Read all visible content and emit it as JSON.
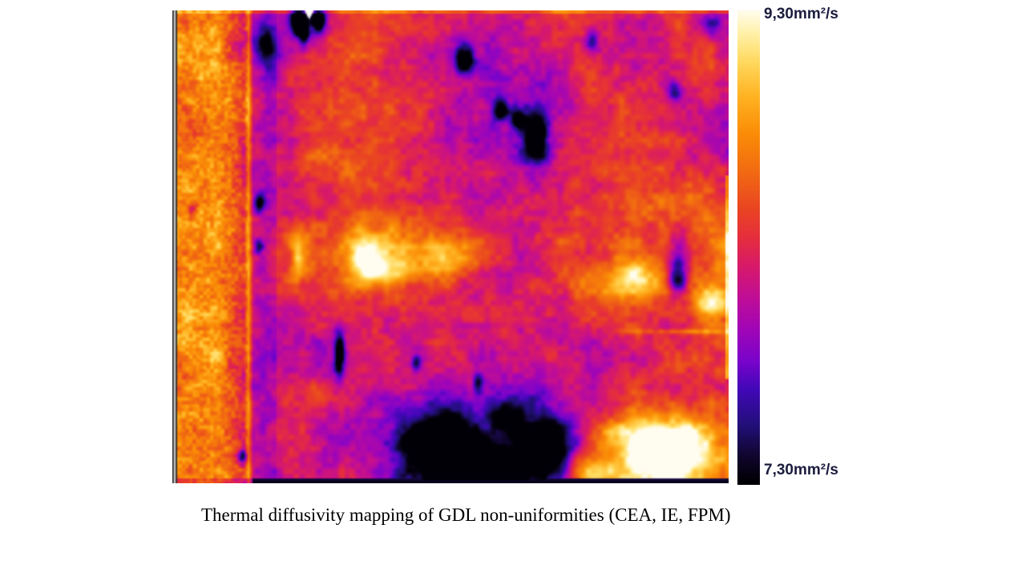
{
  "figure": {
    "caption": "Thermal diffusivity mapping of GDL non-uniformities (CEA, IE, FPM)"
  },
  "colorbar": {
    "max_label": "9,30mm²/s",
    "min_label": "7,30mm²/s",
    "max_value": 9.3,
    "min_value": 7.3,
    "unit": "mm²/s",
    "label_color": "#1b1c3d"
  },
  "chart_data": {
    "type": "heatmap",
    "title": "Thermal diffusivity mapping of GDL non-uniformities (CEA, IE, FPM)",
    "unit": "mm²/s",
    "value_range": [
      7.3,
      9.3
    ],
    "legend_position": "right-colorbar",
    "colorbar_labels": {
      "top": "9,30mm²/s",
      "bottom": "7,30mm²/s"
    },
    "colormap_stops": [
      [
        0.0,
        "#000000"
      ],
      [
        0.06,
        "#10062e"
      ],
      [
        0.125,
        "#23107a"
      ],
      [
        0.2,
        "#4208b8"
      ],
      [
        0.26,
        "#7a04cc"
      ],
      [
        0.33,
        "#a306b6"
      ],
      [
        0.4,
        "#c30f93"
      ],
      [
        0.46,
        "#d81a6a"
      ],
      [
        0.52,
        "#e62e3e"
      ],
      [
        0.58,
        "#ea4523"
      ],
      [
        0.66,
        "#f26b12"
      ],
      [
        0.74,
        "#fb8d07"
      ],
      [
        0.82,
        "#ffb424"
      ],
      [
        0.89,
        "#ffd95e"
      ],
      [
        0.95,
        "#fff1a8"
      ],
      [
        1.0,
        "#fffdf0"
      ]
    ],
    "grid": {
      "cols": 13,
      "rows": 11,
      "values_mm2_per_s": [
        [
          8.75,
          8.8,
          7.95,
          8.1,
          8.5,
          8.4,
          8.2,
          8.15,
          8.3,
          8.5,
          8.2,
          8.45,
          8.1
        ],
        [
          8.8,
          8.75,
          8.0,
          8.45,
          8.55,
          8.35,
          8.1,
          7.9,
          8.2,
          8.45,
          8.05,
          8.35,
          8.25
        ],
        [
          8.75,
          8.85,
          8.15,
          8.5,
          8.6,
          8.5,
          8.25,
          8.0,
          7.85,
          8.3,
          8.45,
          8.2,
          8.0
        ],
        [
          8.8,
          8.7,
          8.2,
          8.55,
          8.5,
          8.3,
          8.05,
          8.1,
          8.0,
          8.2,
          8.5,
          8.3,
          7.9
        ],
        [
          8.75,
          8.75,
          8.05,
          8.4,
          8.45,
          8.2,
          8.1,
          8.15,
          8.25,
          8.45,
          8.55,
          8.45,
          8.35
        ],
        [
          8.8,
          8.8,
          8.25,
          8.6,
          8.8,
          8.9,
          8.5,
          8.3,
          8.35,
          8.5,
          8.7,
          8.2,
          8.8
        ],
        [
          8.75,
          8.7,
          8.2,
          8.45,
          8.5,
          8.4,
          8.25,
          8.2,
          8.3,
          8.5,
          8.6,
          8.55,
          8.6
        ],
        [
          8.8,
          8.75,
          8.15,
          8.1,
          8.3,
          8.2,
          8.1,
          8.2,
          8.15,
          8.1,
          8.4,
          8.25,
          8.3
        ],
        [
          8.75,
          8.7,
          8.2,
          8.25,
          8.15,
          8.2,
          8.15,
          8.05,
          7.95,
          8.1,
          8.3,
          8.3,
          8.35
        ],
        [
          8.8,
          8.75,
          8.15,
          8.25,
          8.1,
          7.8,
          7.6,
          7.55,
          7.8,
          8.3,
          8.7,
          8.85,
          8.6
        ],
        [
          8.75,
          8.7,
          8.1,
          8.2,
          8.1,
          7.7,
          7.45,
          7.5,
          7.75,
          8.5,
          9.0,
          9.1,
          8.7
        ]
      ]
    },
    "features": [
      {
        "x": 0.225,
        "y": 0.022,
        "rx": 0.013,
        "ry": 0.03,
        "dv": -1.4
      },
      {
        "x": 0.262,
        "y": 0.018,
        "rx": 0.013,
        "ry": 0.025,
        "dv": -1.4
      },
      {
        "x": 0.237,
        "y": 0.045,
        "rx": 0.009,
        "ry": 0.028,
        "dv": -1.0
      },
      {
        "x": 0.17,
        "y": 0.075,
        "rx": 0.02,
        "ry": 0.035,
        "dv": -0.55
      },
      {
        "x": 0.525,
        "y": 0.1,
        "rx": 0.018,
        "ry": 0.028,
        "dv": -1.1
      },
      {
        "x": 0.59,
        "y": 0.21,
        "rx": 0.013,
        "ry": 0.022,
        "dv": -0.85
      },
      {
        "x": 0.62,
        "y": 0.23,
        "rx": 0.011,
        "ry": 0.018,
        "dv": -0.7
      },
      {
        "x": 0.655,
        "y": 0.27,
        "rx": 0.02,
        "ry": 0.05,
        "dv": -1.25
      },
      {
        "x": 0.755,
        "y": 0.065,
        "rx": 0.012,
        "ry": 0.025,
        "dv": -0.75
      },
      {
        "x": 0.905,
        "y": 0.17,
        "rx": 0.012,
        "ry": 0.02,
        "dv": -0.7
      },
      {
        "x": 0.975,
        "y": 0.03,
        "rx": 0.02,
        "ry": 0.022,
        "dv": -0.55
      },
      {
        "x": 0.91,
        "y": 0.56,
        "rx": 0.016,
        "ry": 0.035,
        "dv": -1.1
      },
      {
        "x": 0.3,
        "y": 0.73,
        "rx": 0.009,
        "ry": 0.045,
        "dv": -1.15
      },
      {
        "x": 0.44,
        "y": 0.745,
        "rx": 0.009,
        "ry": 0.018,
        "dv": -0.7
      },
      {
        "x": 0.55,
        "y": 0.79,
        "rx": 0.009,
        "ry": 0.022,
        "dv": -0.75
      },
      {
        "x": 0.48,
        "y": 0.92,
        "rx": 0.05,
        "ry": 0.055,
        "dv": -1.35
      },
      {
        "x": 0.56,
        "y": 0.97,
        "rx": 0.06,
        "ry": 0.04,
        "dv": -1.2
      },
      {
        "x": 0.67,
        "y": 0.93,
        "rx": 0.045,
        "ry": 0.06,
        "dv": -1.35
      },
      {
        "x": 0.6,
        "y": 0.865,
        "rx": 0.025,
        "ry": 0.03,
        "dv": -0.8
      },
      {
        "x": 0.125,
        "y": 0.945,
        "rx": 0.008,
        "ry": 0.015,
        "dv": -0.85
      },
      {
        "x": 0.035,
        "y": 0.42,
        "rx": 0.008,
        "ry": 0.012,
        "dv": -0.45
      },
      {
        "x": 0.155,
        "y": 0.41,
        "rx": 0.008,
        "ry": 0.02,
        "dv": -0.75
      },
      {
        "x": 0.155,
        "y": 0.5,
        "rx": 0.008,
        "ry": 0.015,
        "dv": -0.65
      },
      {
        "x": 0.38,
        "y": 0.545,
        "rx": 0.05,
        "ry": 0.04,
        "dv": 0.55
      },
      {
        "x": 0.5,
        "y": 0.525,
        "rx": 0.05,
        "ry": 0.035,
        "dv": 0.6
      },
      {
        "x": 0.345,
        "y": 0.53,
        "rx": 0.025,
        "ry": 0.06,
        "dv": 0.45
      },
      {
        "x": 0.225,
        "y": 0.52,
        "rx": 0.012,
        "ry": 0.05,
        "dv": 0.5
      },
      {
        "x": 0.83,
        "y": 0.57,
        "rx": 0.05,
        "ry": 0.035,
        "dv": 0.5
      },
      {
        "x": 0.97,
        "y": 0.62,
        "rx": 0.03,
        "ry": 0.03,
        "dv": 0.8
      },
      {
        "x": 0.89,
        "y": 0.93,
        "rx": 0.07,
        "ry": 0.05,
        "dv": 1.05
      },
      {
        "x": 0.8,
        "y": 0.89,
        "rx": 0.04,
        "ry": 0.025,
        "dv": 0.6
      },
      {
        "x": 0.75,
        "y": 0.97,
        "rx": 0.04,
        "ry": 0.03,
        "dv": 0.5
      },
      {
        "x": 0.93,
        "y": 0.68,
        "rx": 0.09,
        "ry": 0.005,
        "dv": 0.35
      }
    ],
    "regions": {
      "left_strip": {
        "x_max": 0.135,
        "description": "bright orange speckled band, ~8.6-9.0 mm²/s"
      },
      "main_area": {
        "x_min": 0.14,
        "description": "purple-orange mottled GDL area, ~7.9-8.6 mm²/s"
      },
      "bottom_low_zone": {
        "description": "near-black low-diffusivity cluster (~7.4 mm²/s), bottom centre"
      },
      "bottom_right_hot_spot": {
        "description": "bright high-diffusivity blob (~9.1 mm²/s), bottom right"
      }
    }
  },
  "render": {
    "seed": 1337,
    "noise_octaves": [
      [
        24,
        0.16
      ],
      [
        9,
        0.13
      ],
      [
        3.5,
        0.11
      ]
    ],
    "strip_extra_octave": [
      2.2,
      0.16
    ]
  }
}
